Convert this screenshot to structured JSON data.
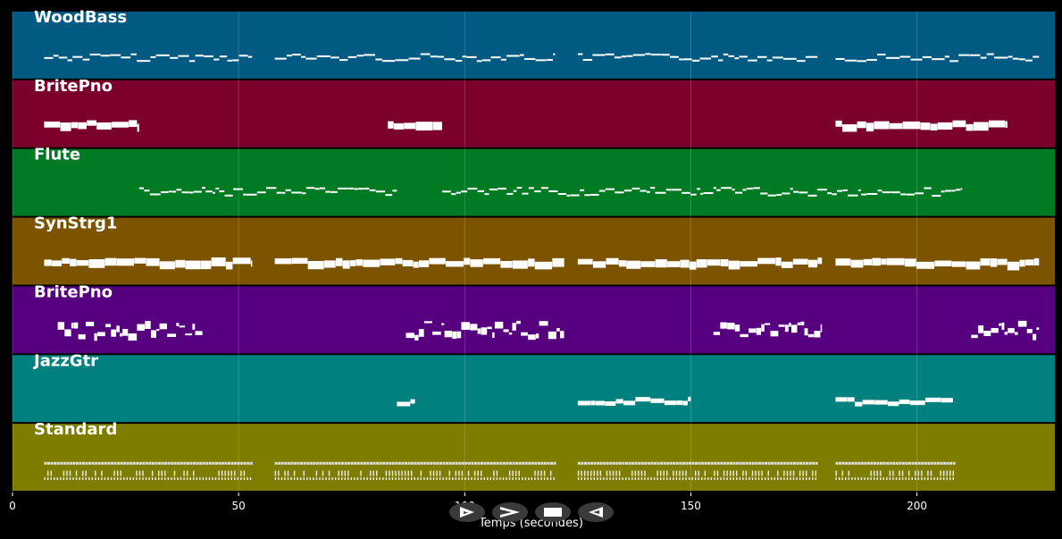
{
  "axis": {
    "x_title": "Temps (secondes)",
    "ticks": [
      0,
      50,
      100,
      150,
      200
    ],
    "x_max": 230.5
  },
  "tracks": [
    {
      "name": "WoodBass",
      "color": "#005a82"
    },
    {
      "name": "BritePno",
      "color": "#7b002b"
    },
    {
      "name": "Flute",
      "color": "#007a23"
    },
    {
      "name": "SynStrg1",
      "color": "#7c5400"
    },
    {
      "name": "BritePno",
      "color": "#560080"
    },
    {
      "name": "JazzGtr",
      "color": "#00807e"
    },
    {
      "name": "Standard",
      "color": "#7e7d00"
    }
  ],
  "transport": [
    {
      "name": "play-outline-icon"
    },
    {
      "name": "fast-forward-icon"
    },
    {
      "name": "stop-icon"
    },
    {
      "name": "rewind-icon"
    }
  ],
  "colors": {
    "background": "#000000",
    "notes": "#ffffff",
    "grid": "#ffffff"
  }
}
